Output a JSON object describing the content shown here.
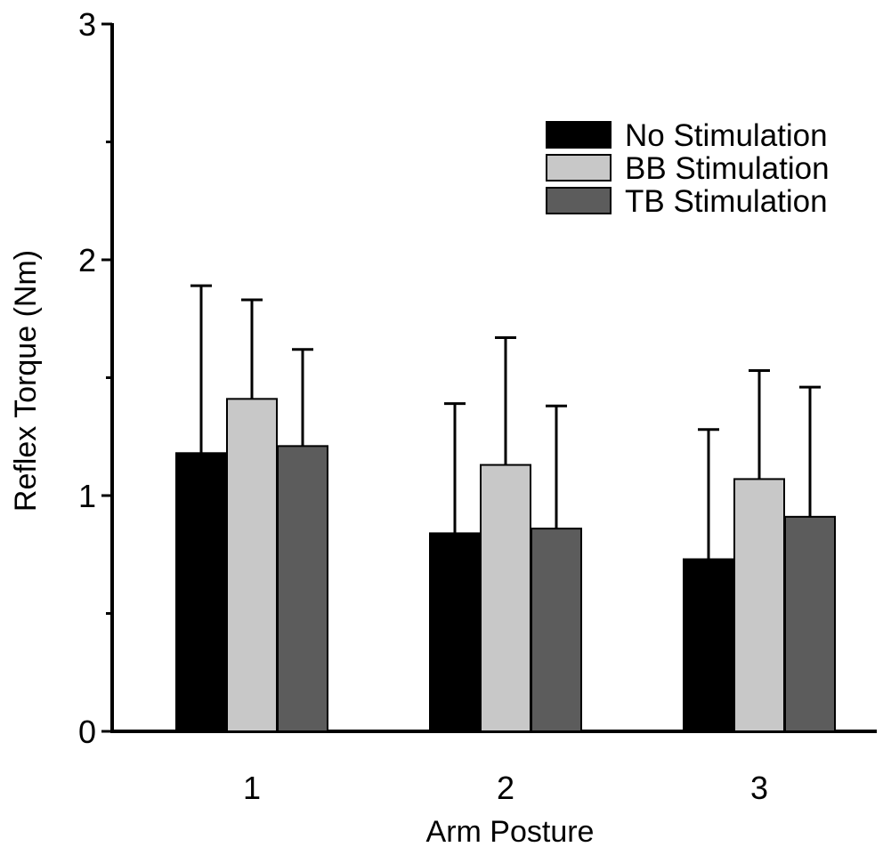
{
  "chart_data": {
    "type": "bar",
    "title": "",
    "xlabel": "Arm Posture",
    "ylabel": "Reflex Torque (Nm)",
    "categories": [
      "1",
      "2",
      "3"
    ],
    "ylim": [
      0,
      3
    ],
    "yticks": [
      0,
      1,
      2,
      3
    ],
    "yticks_minor": [
      0.5,
      1.5,
      2.5
    ],
    "legend_position": "top-right",
    "grid": false,
    "error_bars": "upper only",
    "series": [
      {
        "name": "No Stimulation",
        "color": "#000000",
        "values": [
          1.18,
          0.84,
          0.73
        ],
        "errors": [
          0.71,
          0.55,
          0.55
        ]
      },
      {
        "name": "BB Stimulation",
        "color": "#c8c8c8",
        "values": [
          1.41,
          1.13,
          1.07
        ],
        "errors": [
          0.42,
          0.54,
          0.46
        ]
      },
      {
        "name": "TB Stimulation",
        "color": "#5c5c5c",
        "values": [
          1.21,
          0.86,
          0.91
        ],
        "errors": [
          0.41,
          0.52,
          0.55
        ]
      }
    ]
  }
}
